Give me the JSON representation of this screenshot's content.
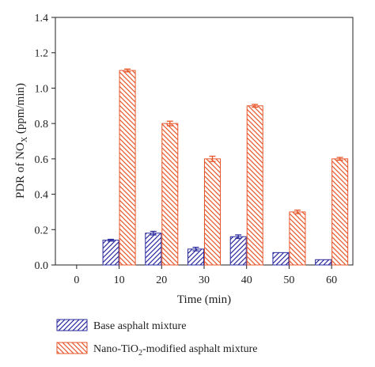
{
  "chart_data": {
    "type": "bar",
    "x_tick_labels": [
      "0",
      "10",
      "20",
      "30",
      "40",
      "50",
      "60"
    ],
    "x_values": [
      0,
      10,
      20,
      30,
      40,
      50,
      60
    ],
    "xlim": [
      -5,
      65
    ],
    "ylim": [
      0.0,
      1.4
    ],
    "y_ticks": [
      0.0,
      0.2,
      0.4,
      0.6,
      0.8,
      1.0,
      1.2,
      1.4
    ],
    "y_tick_labels": [
      "0.0",
      "0.2",
      "0.4",
      "0.6",
      "0.8",
      "1.0",
      "1.2",
      "1.4"
    ],
    "xlabel": "Time (min)",
    "ylabel": {
      "prefix": "PDR of NO",
      "sub": "X",
      "suffix": " (ppm/min)"
    },
    "grid": false,
    "legend_position": "bottom",
    "series": [
      {
        "name": "Base asphalt mixture",
        "name_parts": {
          "pre": "Base asphalt mixture",
          "sub": "",
          "post": ""
        },
        "color": "#2b2b9e",
        "hatch": "forward-diagonal",
        "values": [
          0.0,
          0.14,
          0.18,
          0.09,
          0.16,
          0.07,
          0.03
        ],
        "errors": [
          0.0,
          0.005,
          0.01,
          0.01,
          0.01,
          0.0,
          0.0
        ]
      },
      {
        "name": "Nano-TiO2-modified asphalt mixture",
        "name_parts": {
          "pre": "Nano-TiO",
          "sub": "2",
          "post": "-modified asphalt mixture"
        },
        "color": "#e8572a",
        "hatch": "backward-diagonal",
        "values": [
          0.0,
          1.1,
          0.8,
          0.6,
          0.9,
          0.3,
          0.6
        ],
        "errors": [
          0.0,
          0.008,
          0.013,
          0.015,
          0.008,
          0.01,
          0.008
        ]
      }
    ]
  }
}
